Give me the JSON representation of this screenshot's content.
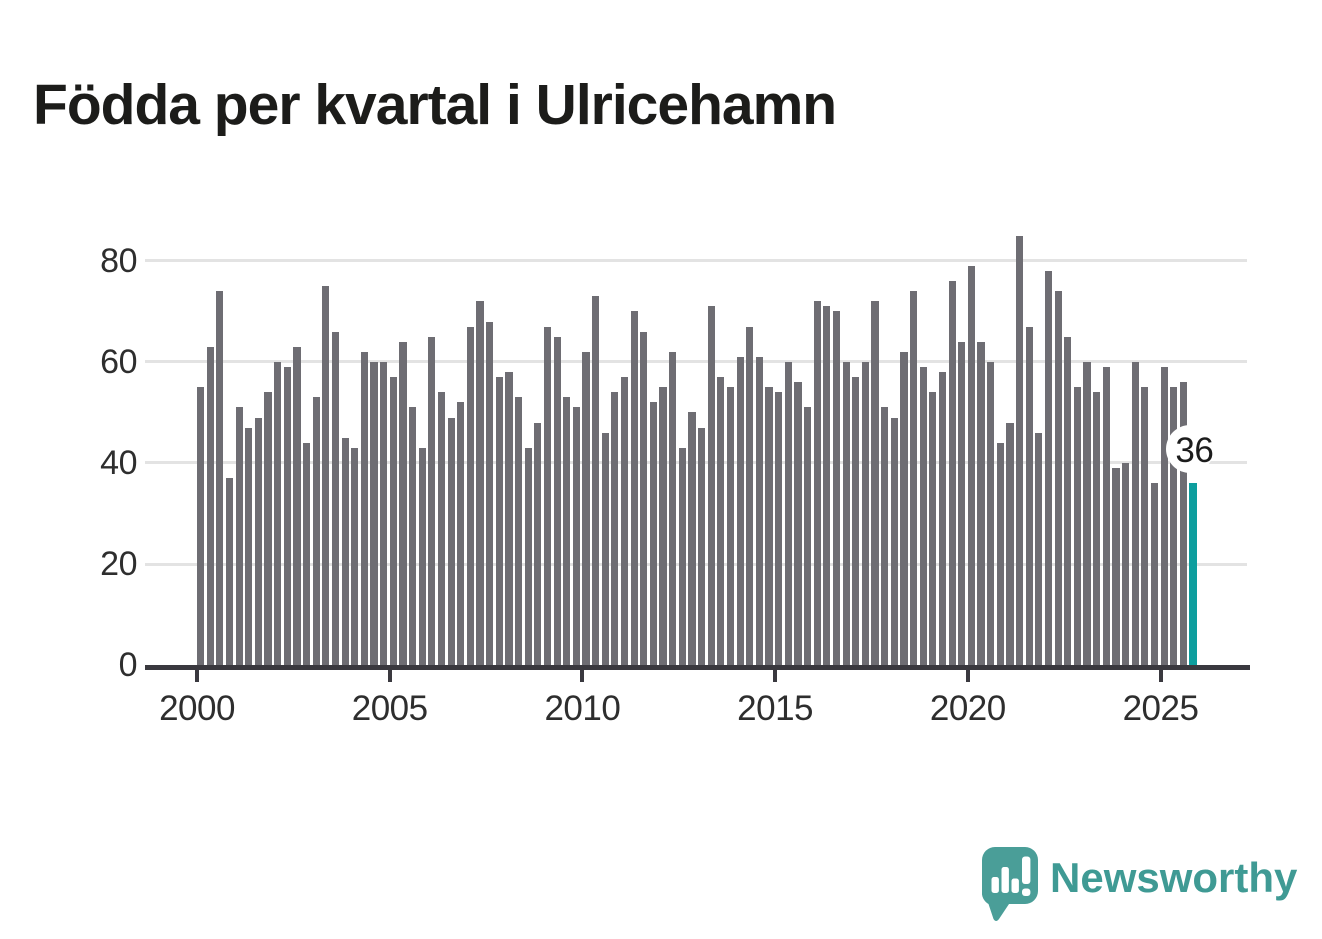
{
  "page": {
    "title": "Födda per kvartal i Ulricehamn"
  },
  "chart_data": {
    "type": "bar",
    "title": "Födda per kvartal i Ulricehamn",
    "xlabel": "",
    "ylabel": "",
    "grid": "horizontal",
    "legend": "none",
    "ylim": [
      0,
      88
    ],
    "y_ticks": [
      0,
      20,
      40,
      60,
      80
    ],
    "x_tick_labels": [
      "2000",
      "2005",
      "2010",
      "2015",
      "2020",
      "2025"
    ],
    "x_tick_years": [
      2000,
      2005,
      2010,
      2015,
      2020,
      2025
    ],
    "categories": [
      "2000Q1",
      "2000Q2",
      "2000Q3",
      "2000Q4",
      "2001Q1",
      "2001Q2",
      "2001Q3",
      "2001Q4",
      "2002Q1",
      "2002Q2",
      "2002Q3",
      "2002Q4",
      "2003Q1",
      "2003Q2",
      "2003Q3",
      "2003Q4",
      "2004Q1",
      "2004Q2",
      "2004Q3",
      "2004Q4",
      "2005Q1",
      "2005Q2",
      "2005Q3",
      "2005Q4",
      "2006Q1",
      "2006Q2",
      "2006Q3",
      "2006Q4",
      "2007Q1",
      "2007Q2",
      "2007Q3",
      "2007Q4",
      "2008Q1",
      "2008Q2",
      "2008Q3",
      "2008Q4",
      "2009Q1",
      "2009Q2",
      "2009Q3",
      "2009Q4",
      "2010Q1",
      "2010Q2",
      "2010Q3",
      "2010Q4",
      "2011Q1",
      "2011Q2",
      "2011Q3",
      "2011Q4",
      "2012Q1",
      "2012Q2",
      "2012Q3",
      "2012Q4",
      "2013Q1",
      "2013Q2",
      "2013Q3",
      "2013Q4",
      "2014Q1",
      "2014Q2",
      "2014Q3",
      "2014Q4",
      "2015Q1",
      "2015Q2",
      "2015Q3",
      "2015Q4",
      "2016Q1",
      "2016Q2",
      "2016Q3",
      "2016Q4",
      "2017Q1",
      "2017Q2",
      "2017Q3",
      "2017Q4",
      "2018Q1",
      "2018Q2",
      "2018Q3",
      "2018Q4",
      "2019Q1",
      "2019Q2",
      "2019Q3",
      "2019Q4",
      "2020Q1",
      "2020Q2",
      "2020Q3",
      "2020Q4",
      "2021Q1",
      "2021Q2",
      "2021Q3",
      "2021Q4",
      "2022Q1",
      "2022Q2",
      "2022Q3",
      "2022Q4",
      "2023Q1",
      "2023Q2",
      "2023Q3",
      "2023Q4",
      "2024Q1",
      "2024Q2",
      "2024Q3",
      "2024Q4",
      "2025Q1",
      "2025Q2",
      "2025Q3",
      "2025Q4"
    ],
    "values": [
      55,
      63,
      74,
      37,
      51,
      47,
      49,
      54,
      60,
      59,
      63,
      44,
      53,
      75,
      66,
      45,
      43,
      62,
      60,
      60,
      57,
      64,
      51,
      43,
      65,
      54,
      49,
      52,
      67,
      72,
      68,
      57,
      58,
      53,
      43,
      48,
      67,
      65,
      53,
      51,
      62,
      73,
      46,
      54,
      57,
      70,
      66,
      52,
      55,
      62,
      43,
      50,
      47,
      71,
      57,
      55,
      61,
      67,
      61,
      55,
      54,
      60,
      56,
      51,
      72,
      71,
      70,
      60,
      57,
      60,
      72,
      51,
      49,
      62,
      74,
      59,
      54,
      58,
      76,
      64,
      79,
      64,
      60,
      44,
      48,
      85,
      67,
      46,
      78,
      74,
      65,
      55,
      60,
      54,
      59,
      39,
      40,
      60,
      55,
      36,
      59,
      55,
      56,
      36
    ],
    "bar_color": "#6e6d73",
    "highlight": {
      "index": 103,
      "category": "2025Q4",
      "value": 36,
      "label": "36",
      "color": "#0d9e9e"
    }
  },
  "annotation": {
    "text": "36"
  },
  "branding": {
    "logo_text": "Newsworthy",
    "logo_color": "#3f9a94",
    "bubble_color": "#4a9e98"
  }
}
